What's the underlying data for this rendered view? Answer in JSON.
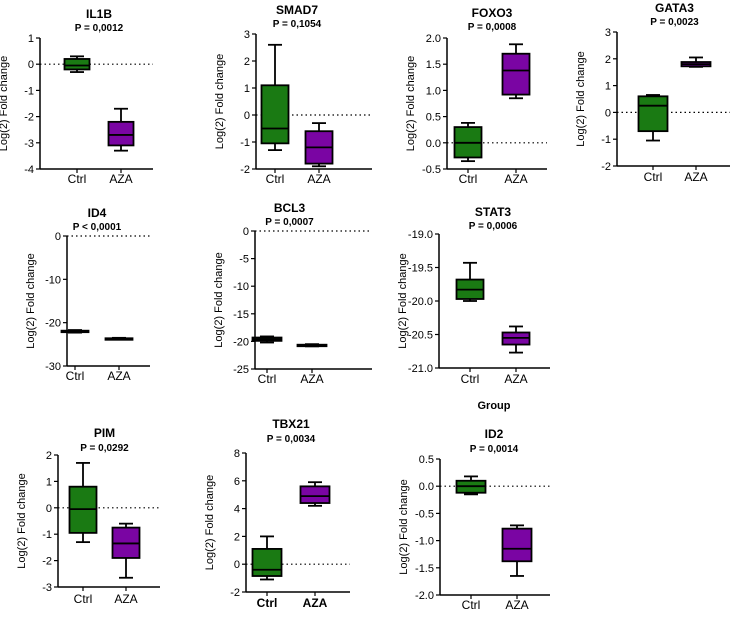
{
  "figure_label": "Group",
  "colors": {
    "ctrl": "#1a7a13",
    "aza": "#7a05a3",
    "axis": "#000000"
  },
  "chart_data": [
    {
      "type": "box",
      "title": "IL1B",
      "subtitle": "P = 0,0012",
      "ylabel": "Log(2) Fold change",
      "categories": [
        "Ctrl",
        "AZA"
      ],
      "ylim": [
        -4,
        1
      ],
      "yticks": [
        1,
        0,
        -1,
        -2,
        -3,
        -4
      ],
      "tick_labels": [
        "1",
        "0",
        "-1",
        "-2",
        "-3",
        "-4"
      ],
      "reference_line": 0,
      "series": [
        {
          "name": "Ctrl",
          "min": -0.3,
          "q1": -0.2,
          "median": -0.05,
          "q3": 0.2,
          "max": 0.3
        },
        {
          "name": "AZA",
          "min": -3.3,
          "q1": -3.1,
          "median": -2.7,
          "q3": -2.2,
          "max": -1.7
        }
      ]
    },
    {
      "type": "box",
      "title": "SMAD7",
      "subtitle": "P = 0,1054",
      "ylabel": "Log(2) Fold change",
      "categories": [
        "Ctrl",
        "AZA"
      ],
      "ylim": [
        -2,
        3
      ],
      "yticks": [
        3,
        2,
        1,
        0,
        -1,
        -2
      ],
      "tick_labels": [
        "3",
        "2",
        "1",
        "0",
        "-1",
        "-2"
      ],
      "reference_line": 0,
      "series": [
        {
          "name": "Ctrl",
          "min": -1.3,
          "q1": -1.05,
          "median": -0.5,
          "q3": 1.1,
          "max": 2.6
        },
        {
          "name": "AZA",
          "min": -1.9,
          "q1": -1.8,
          "median": -1.2,
          "q3": -0.6,
          "max": -0.3
        }
      ]
    },
    {
      "type": "box",
      "title": "FOXO3",
      "subtitle": "P = 0,0008",
      "ylabel": "Log(2) Fold change",
      "categories": [
        "Ctrl",
        "AZA"
      ],
      "ylim": [
        -0.5,
        2.0
      ],
      "yticks": [
        2.0,
        1.5,
        1.0,
        0.5,
        0.0,
        -0.5
      ],
      "tick_labels": [
        "2.0",
        "1.5",
        "1.0",
        "0.5",
        "0.0",
        "-0.5"
      ],
      "reference_line": 0,
      "series": [
        {
          "name": "Ctrl",
          "min": -0.35,
          "q1": -0.28,
          "median": 0.0,
          "q3": 0.3,
          "max": 0.38
        },
        {
          "name": "AZA",
          "min": 0.85,
          "q1": 0.92,
          "median": 1.38,
          "q3": 1.7,
          "max": 1.88
        }
      ]
    },
    {
      "type": "box",
      "title": "GATA3",
      "subtitle": "P = 0,0023",
      "ylabel": "Log(2) Fold change",
      "categories": [
        "Ctrl",
        "AZA"
      ],
      "ylim": [
        -2,
        3
      ],
      "yticks": [
        3,
        2,
        1,
        0,
        -1,
        -2
      ],
      "tick_labels": [
        "3",
        "2",
        "1",
        "0",
        "-1",
        "-2"
      ],
      "reference_line": 0,
      "series": [
        {
          "name": "Ctrl",
          "min": -1.05,
          "q1": -0.7,
          "median": 0.25,
          "q3": 0.6,
          "max": 0.65
        },
        {
          "name": "AZA",
          "min": 1.7,
          "q1": 1.72,
          "median": 1.8,
          "q3": 1.88,
          "max": 2.05
        }
      ]
    },
    {
      "type": "box",
      "title": "ID4",
      "subtitle": "P < 0,0001",
      "ylabel": "Log(2) Fold change",
      "categories": [
        "Ctrl",
        "AZA"
      ],
      "ylim": [
        -30,
        0
      ],
      "yticks": [
        0,
        -10,
        -20,
        -30
      ],
      "tick_labels": [
        "0",
        "-10",
        "-20",
        "-30"
      ],
      "reference_line": 0,
      "series": [
        {
          "name": "Ctrl",
          "min": -22.3,
          "q1": -22.15,
          "median": -22.0,
          "q3": -21.85,
          "max": -21.7
        },
        {
          "name": "AZA",
          "min": -23.9,
          "q1": -23.8,
          "median": -23.7,
          "q3": -23.6,
          "max": -23.5
        }
      ]
    },
    {
      "type": "box",
      "title": "BCL3",
      "subtitle": "P = 0,0007",
      "ylabel": "Log(2) Fold change",
      "categories": [
        "Ctrl",
        "AZA"
      ],
      "ylim": [
        -25,
        0
      ],
      "yticks": [
        0,
        -5,
        -10,
        -15,
        -20,
        -25
      ],
      "tick_labels": [
        "0",
        "-5",
        "-10",
        "-15",
        "-20",
        "-25"
      ],
      "reference_line": 0,
      "series": [
        {
          "name": "Ctrl",
          "min": -20.2,
          "q1": -19.9,
          "median": -19.6,
          "q3": -19.3,
          "max": -19.1
        },
        {
          "name": "AZA",
          "min": -20.9,
          "q1": -20.8,
          "median": -20.7,
          "q3": -20.6,
          "max": -20.5
        }
      ]
    },
    {
      "type": "box",
      "title": "STAT3",
      "subtitle": "P = 0,0006",
      "ylabel": "Log(2) Fold change",
      "categories": [
        "Ctrl",
        "AZA"
      ],
      "ylim": [
        -21.0,
        -19.0
      ],
      "yticks": [
        -19.0,
        -19.5,
        -20.0,
        -20.5,
        -21.0
      ],
      "tick_labels": [
        "-19.0",
        "-19.5",
        "-20.0",
        "-20.5",
        "-21.0"
      ],
      "reference_line": null,
      "series": [
        {
          "name": "Ctrl",
          "min": -20.0,
          "q1": -19.97,
          "median": -19.83,
          "q3": -19.68,
          "max": -19.43
        },
        {
          "name": "AZA",
          "min": -20.77,
          "q1": -20.65,
          "median": -20.55,
          "q3": -20.47,
          "max": -20.38
        }
      ]
    },
    {
      "type": "box",
      "title": "PIM",
      "subtitle": "P = 0,0292",
      "ylabel": "Log(2) Fold change",
      "categories": [
        "Ctrl",
        "AZA"
      ],
      "ylim": [
        -3,
        2
      ],
      "yticks": [
        2,
        1,
        0,
        -1,
        -2,
        -3
      ],
      "tick_labels": [
        "2",
        "1",
        "0",
        "-1",
        "-2",
        "-3"
      ],
      "reference_line": 0,
      "series": [
        {
          "name": "Ctrl",
          "min": -1.3,
          "q1": -0.95,
          "median": -0.05,
          "q3": 0.8,
          "max": 1.7
        },
        {
          "name": "AZA",
          "min": -2.65,
          "q1": -1.9,
          "median": -1.35,
          "q3": -0.75,
          "max": -0.6
        }
      ]
    },
    {
      "type": "box",
      "title": "TBX21",
      "subtitle": "P = 0,0034",
      "ylabel": "Log(2) Fold change",
      "categories": [
        "Ctrl",
        "AZA"
      ],
      "bold_categories": true,
      "ylim": [
        -2,
        8
      ],
      "yticks": [
        8,
        6,
        4,
        2,
        0,
        -2
      ],
      "tick_labels": [
        "8",
        "6",
        "4",
        "2",
        "0",
        "-2"
      ],
      "reference_line": 0,
      "series": [
        {
          "name": "Ctrl",
          "min": -1.1,
          "q1": -0.85,
          "median": -0.4,
          "q3": 1.1,
          "max": 2.0
        },
        {
          "name": "AZA",
          "min": 4.2,
          "q1": 4.4,
          "median": 4.9,
          "q3": 5.6,
          "max": 5.9
        }
      ]
    },
    {
      "type": "box",
      "title": "ID2",
      "subtitle": "P = 0,0014",
      "ylabel": "Log(2) Fold change",
      "categories": [
        "Ctrl",
        "AZA"
      ],
      "ylim": [
        -2.0,
        0.5
      ],
      "yticks": [
        0.5,
        0.0,
        -0.5,
        -1.0,
        -1.5,
        -2.0
      ],
      "tick_labels": [
        "0.5",
        "0.0",
        "-0.5",
        "-1.0",
        "-1.5",
        "-2.0"
      ],
      "reference_line": 0,
      "series": [
        {
          "name": "Ctrl",
          "min": -0.15,
          "q1": -0.12,
          "median": 0.0,
          "q3": 0.1,
          "max": 0.18
        },
        {
          "name": "AZA",
          "min": -1.65,
          "q1": -1.38,
          "median": -1.15,
          "q3": -0.78,
          "max": -0.72
        }
      ]
    }
  ]
}
